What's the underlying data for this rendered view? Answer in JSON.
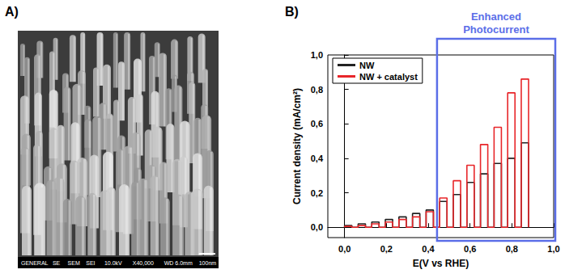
{
  "panel_labels": [
    "A)",
    "B)"
  ],
  "sem_image": {
    "info_bar": [
      "GENERAL",
      "SE",
      "SEM",
      "SEI",
      "10.0kV",
      "X40,000",
      "WD 6.0mm",
      "100nm"
    ]
  },
  "chart_data": {
    "type": "line",
    "x_label": "E(V vs RHE)",
    "y_label": "Current density (mA/cm²)",
    "xlim": [
      -0.08,
      1.0
    ],
    "xticks": [
      {
        "value": 0,
        "label": "0,0"
      },
      {
        "value": 0.2,
        "label": "0,2"
      },
      {
        "value": 0.4,
        "label": "0,4"
      },
      {
        "value": 0.6,
        "label": "0,6"
      },
      {
        "value": 0.8,
        "label": "0,8"
      },
      {
        "value": 1.0,
        "label": "1,0"
      }
    ],
    "ylim": [
      -0.06,
      1.0
    ],
    "yticks": [
      {
        "value": 0,
        "label": "0,0"
      },
      {
        "value": 0.2,
        "label": "0,2"
      },
      {
        "value": 0.4,
        "label": "0,4"
      },
      {
        "value": 0.6,
        "label": "0,6"
      },
      {
        "value": 0.8,
        "label": "0,8"
      },
      {
        "value": 1.0,
        "label": "1,0"
      }
    ],
    "grid": false,
    "legend": "upper left",
    "series": [
      {
        "name": "NW",
        "color": "#222222",
        "x": [
          0,
          0,
          0.035,
          0.035,
          0.065,
          0.065,
          0.1,
          0.1,
          0.13,
          0.13,
          0.165,
          0.165,
          0.195,
          0.195,
          0.23,
          0.23,
          0.26,
          0.26,
          0.295,
          0.295,
          0.325,
          0.325,
          0.36,
          0.36,
          0.39,
          0.39,
          0.425,
          0.425,
          0.455,
          0.455,
          0.49,
          0.49,
          0.52,
          0.52,
          0.555,
          0.555,
          0.585,
          0.585,
          0.62,
          0.62,
          0.65,
          0.65,
          0.685,
          0.685,
          0.715,
          0.715,
          0.75,
          0.75,
          0.78,
          0.78,
          0.815,
          0.815,
          0.845,
          0.845,
          0.88,
          0.88
        ],
        "values": [
          0,
          0.01,
          0.01,
          0,
          0,
          0.02,
          0.02,
          0,
          0,
          0.03,
          0.03,
          0,
          0,
          0.045,
          0.045,
          0,
          0,
          0.06,
          0.06,
          0,
          0,
          0.08,
          0.08,
          0,
          0,
          0.1,
          0.1,
          0,
          0,
          0.15,
          0.15,
          0,
          0,
          0.19,
          0.19,
          0,
          0,
          0.26,
          0.26,
          0,
          0,
          0.31,
          0.31,
          0,
          0,
          0.37,
          0.37,
          0,
          0,
          0.4,
          0.4,
          0,
          0,
          0.49,
          0.49,
          0
        ]
      },
      {
        "name": "NW + catalyst",
        "color": "#e8262a",
        "x": [
          0,
          0,
          0.035,
          0.035,
          0.065,
          0.065,
          0.1,
          0.1,
          0.13,
          0.13,
          0.165,
          0.165,
          0.195,
          0.195,
          0.23,
          0.23,
          0.26,
          0.26,
          0.295,
          0.295,
          0.325,
          0.325,
          0.36,
          0.36,
          0.39,
          0.39,
          0.425,
          0.425,
          0.455,
          0.455,
          0.49,
          0.49,
          0.52,
          0.52,
          0.555,
          0.555,
          0.585,
          0.585,
          0.62,
          0.62,
          0.65,
          0.65,
          0.685,
          0.685,
          0.715,
          0.715,
          0.75,
          0.75,
          0.78,
          0.78,
          0.815,
          0.815,
          0.845,
          0.845,
          0.88,
          0.88
        ],
        "values": [
          0,
          0.005,
          0.005,
          0,
          0,
          0.01,
          0.01,
          0,
          0,
          0.02,
          0.02,
          0,
          0,
          0.03,
          0.03,
          0,
          0,
          0.045,
          0.045,
          0,
          0,
          0.06,
          0.06,
          0,
          0,
          0.09,
          0.09,
          0,
          0,
          0.17,
          0.17,
          0,
          0,
          0.27,
          0.27,
          0,
          0,
          0.36,
          0.36,
          0,
          0,
          0.48,
          0.48,
          0,
          0,
          0.58,
          0.58,
          0,
          0,
          0.78,
          0.78,
          0,
          0,
          0.86,
          0.86,
          0
        ]
      }
    ],
    "annotations": [
      {
        "text": "Enhanced Photocurrent",
        "x_range": [
          0.45,
          1.0
        ],
        "color": "#5b6ee8"
      }
    ]
  }
}
